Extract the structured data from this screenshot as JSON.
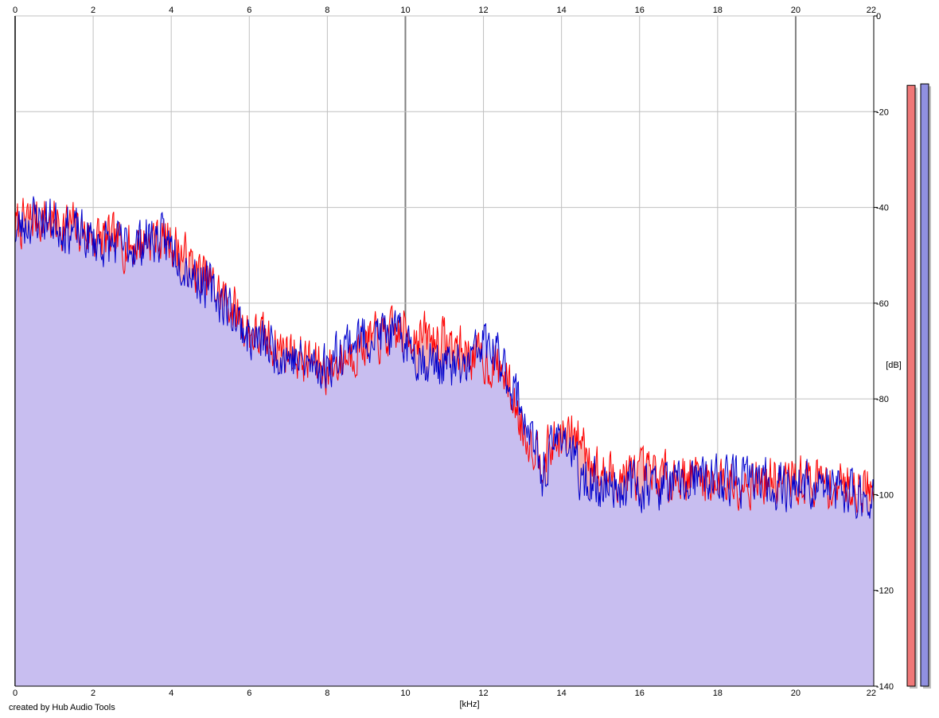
{
  "credit_text": "created by Hub Audio Tools",
  "colors": {
    "background": "#ffffff",
    "grid": "#c0c0c0",
    "grid_major": "#808080",
    "left_line": "#ff0000",
    "left_fill": "#f4b4b4",
    "right_line": "#0000cc",
    "right_fill": "#c0c0fa",
    "meter_left": "#f07878",
    "meter_right": "#9090e0",
    "meter_shadow": "#c0c0c0"
  },
  "chart_data": {
    "type": "area",
    "xlabel": "[kHz]",
    "ylabel": "[dB]",
    "xlim": [
      0,
      22
    ],
    "ylim": [
      -140,
      0
    ],
    "x_ticks": [
      "0",
      "2",
      "4",
      "6",
      "8",
      "10",
      "12",
      "14",
      "16",
      "18",
      "20",
      "22"
    ],
    "y_ticks": [
      "0",
      "-20",
      "-40",
      "-60",
      "-80",
      "-100",
      "-120",
      "-140"
    ],
    "grid": true,
    "series": [
      {
        "channel": "left",
        "x": [
          0,
          0.5,
          1,
          1.5,
          2,
          2.5,
          3,
          3.5,
          4,
          4.5,
          5,
          5.5,
          6,
          6.5,
          7,
          7.5,
          8,
          8.5,
          9,
          9.5,
          10,
          10.5,
          11,
          11.5,
          12,
          12.5,
          13,
          13.5,
          14,
          14.5,
          15,
          15.5,
          16,
          16.5,
          17,
          17.5,
          18,
          18.5,
          19,
          19.5,
          20,
          20.5,
          21,
          21.5,
          22
        ],
        "values": [
          -44,
          -42,
          -43,
          -44,
          -46,
          -47,
          -48,
          -46,
          -47,
          -52,
          -56,
          -60,
          -66,
          -68,
          -70,
          -72,
          -74,
          -71,
          -68,
          -67,
          -66,
          -67,
          -68,
          -70,
          -72,
          -74,
          -86,
          -92,
          -88,
          -88,
          -96,
          -96,
          -96,
          -96,
          -96,
          -96,
          -97,
          -97,
          -97,
          -97,
          -97,
          -97,
          -98,
          -98,
          -99
        ]
      },
      {
        "channel": "right",
        "x": [
          0,
          0.5,
          1,
          1.5,
          2,
          2.5,
          3,
          3.5,
          4,
          4.5,
          5,
          5.5,
          6,
          6.5,
          7,
          7.5,
          8,
          8.5,
          9,
          9.5,
          10,
          10.5,
          11,
          11.5,
          12,
          12.5,
          13,
          13.5,
          14,
          14.5,
          15,
          15.5,
          16,
          16.5,
          17,
          17.5,
          18,
          18.5,
          19,
          19.5,
          20,
          20.5,
          21,
          21.5,
          22
        ],
        "values": [
          -45,
          -42,
          -43,
          -45,
          -47,
          -48,
          -48,
          -46,
          -48,
          -53,
          -57,
          -61,
          -67,
          -69,
          -71,
          -73,
          -73,
          -68,
          -67,
          -66,
          -68,
          -72,
          -73,
          -74,
          -68,
          -73,
          -82,
          -96,
          -86,
          -97,
          -98,
          -98,
          -98,
          -98,
          -98,
          -97,
          -97,
          -97,
          -97,
          -98,
          -98,
          -98,
          -99,
          -100,
          -100
        ]
      }
    ],
    "meters": [
      {
        "channel": "left",
        "top_db": -14.5
      },
      {
        "channel": "right",
        "top_db": -14.2
      }
    ]
  }
}
